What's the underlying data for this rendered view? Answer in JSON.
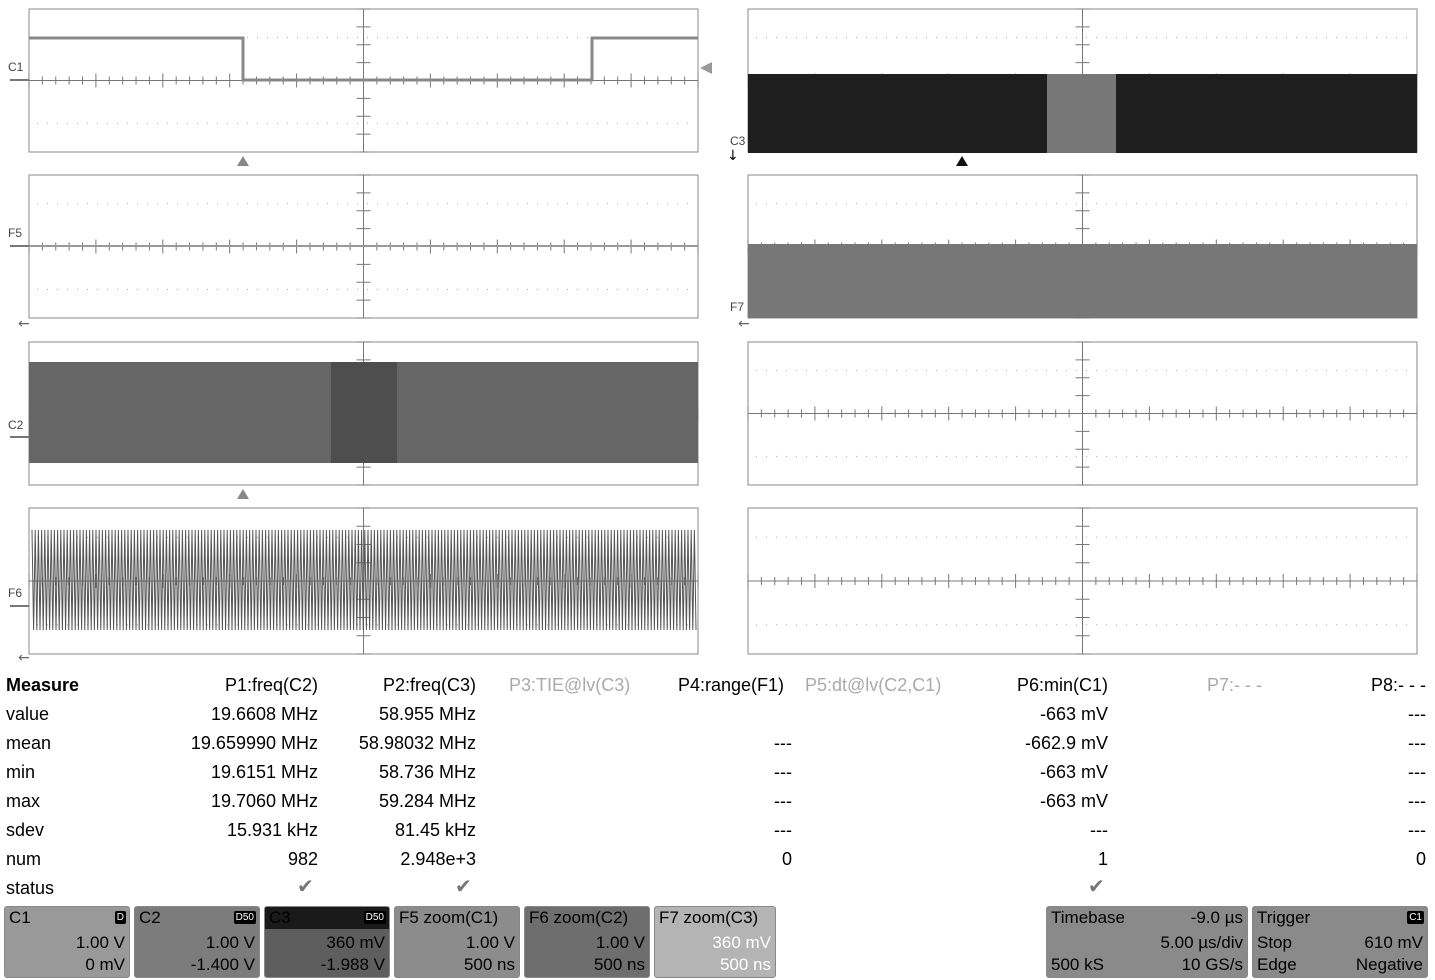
{
  "traces": {
    "C1": "C1",
    "F5": "F5",
    "C2": "C2",
    "F6": "F6",
    "C3": "C3",
    "F7": "F7"
  },
  "measure": {
    "title": "Measure",
    "headers": [
      "P1:freq(C2)",
      "P2:freq(C3)",
      "P3:TIE@lv(C3)",
      "P4:range(F1)",
      "P5:dt@lv(C2,C1)",
      "P6:min(C1)",
      "P7:- - -",
      "P8:- - -"
    ],
    "row_labels": [
      "value",
      "mean",
      "min",
      "max",
      "sdev",
      "num",
      "status"
    ],
    "p1": [
      "19.6608 MHz",
      "19.659990 MHz",
      "19.6151 MHz",
      "19.7060 MHz",
      "15.931 kHz",
      "982"
    ],
    "p2": [
      "58.955 MHz",
      "58.98032 MHz",
      "58.736 MHz",
      "59.284 MHz",
      "81.45 kHz",
      "2.948e+3"
    ],
    "p4": [
      "",
      "---",
      "---",
      "---",
      "---",
      "0"
    ],
    "p6": [
      "-663 mV",
      "-662.9 mV",
      "-663 mV",
      "-663 mV",
      "---",
      "1"
    ],
    "p8": [
      "---",
      "---",
      "---",
      "---",
      "---",
      "0"
    ],
    "status_check": "✔"
  },
  "descriptors": {
    "c1": {
      "title": "C1",
      "badge": "D",
      "line1": "1.00 V",
      "line2": "0 mV",
      "bg": "#999999"
    },
    "c2": {
      "title": "C2",
      "badge": "D50",
      "line1": "1.00 V",
      "line2": "-1.400 V",
      "bg": "#7c7c7c"
    },
    "c3": {
      "title": "C3",
      "badge": "D50",
      "line1": "360 mV",
      "line2": "-1.988 V",
      "bg": "#5e5e5e"
    },
    "f5": {
      "title": "F5 zoom(C1)",
      "line1": "1.00 V",
      "line2": "500 ns",
      "bg": "#8c8c8c"
    },
    "f6": {
      "title": "F6 zoom(C2)",
      "line1": "1.00 V",
      "line2": "500 ns",
      "bg": "#6e6e6e"
    },
    "f7": {
      "title": "F7 zoom(C3)",
      "line1": "360 mV",
      "line2": "500 ns",
      "bg": "#b4b4b4"
    },
    "timebase": {
      "title": "Timebase",
      "delay": "-9.0 µs",
      "div": "5.00 µs/div",
      "samples": "500 kS",
      "rate": "10 GS/s",
      "bg": "#8a8a8a"
    },
    "trigger": {
      "title": "Trigger",
      "badge": "C1",
      "mode": "Stop",
      "level": "610 mV",
      "type": "Edge",
      "slope": "Negative",
      "bg": "#8a8a8a"
    }
  }
}
